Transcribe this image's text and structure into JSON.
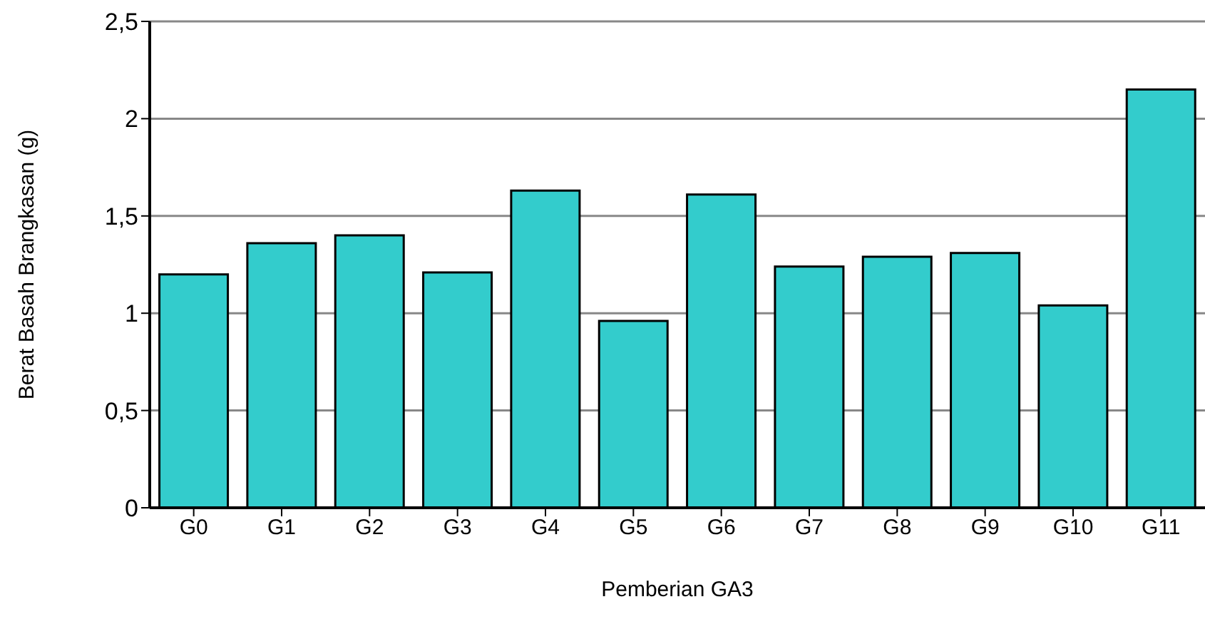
{
  "chart_data": {
    "type": "bar",
    "xlabel": "Pemberian GA3",
    "ylabel": "Berat Basah Brangkasan (g)",
    "categories": [
      "G0",
      "G1",
      "G2",
      "G3",
      "G4",
      "G5",
      "G6",
      "G7",
      "G8",
      "G9",
      "G10",
      "G11"
    ],
    "values": [
      1.2,
      1.36,
      1.4,
      1.21,
      1.63,
      0.96,
      1.61,
      1.24,
      1.29,
      1.31,
      1.04,
      2.15
    ],
    "color": "#33cccc",
    "ylim": [
      0,
      2.5
    ],
    "yticks": [
      0,
      {
        "value": 0.5,
        "label": "0,5"
      },
      1,
      {
        "value": 1.5,
        "label": "1,5"
      },
      2,
      {
        "value": 2.5,
        "label": "2,5"
      }
    ],
    "grid": "y"
  }
}
